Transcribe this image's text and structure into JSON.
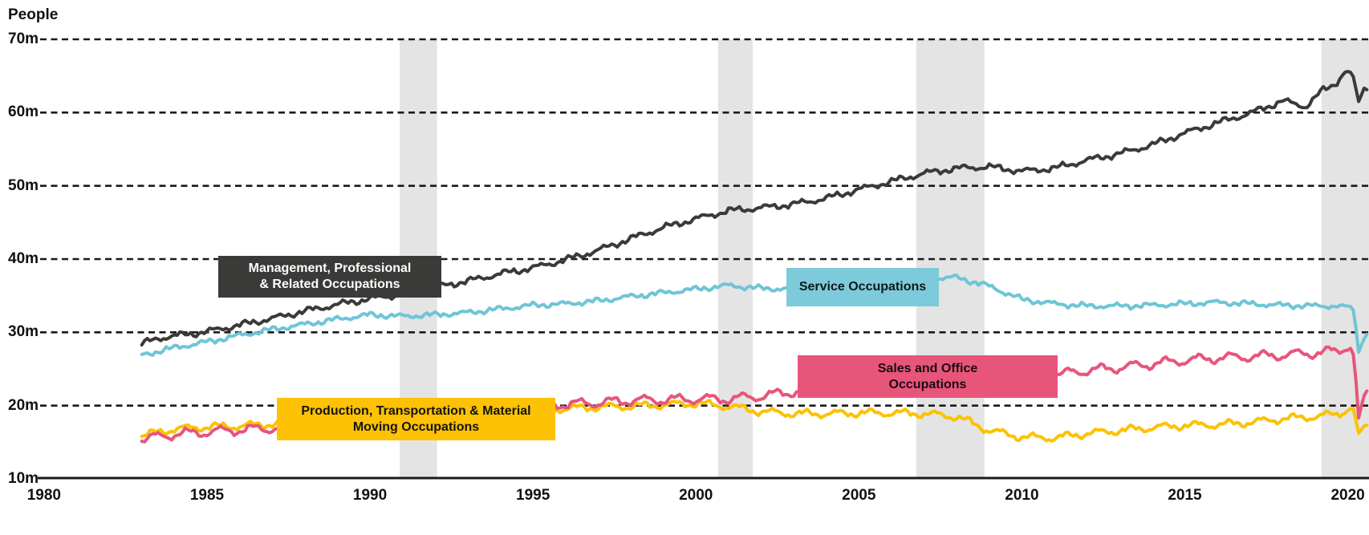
{
  "chart_data": {
    "type": "line",
    "title": "",
    "ylabel": "People",
    "xlabel": "",
    "ylim": [
      10,
      70
    ],
    "xlim": [
      1979.88,
      2020.65
    ],
    "grid": "horizontal-dashed",
    "background_color": "#ffffff",
    "gridline_color": "#1a1a1a",
    "recession_band_color": "#e4e4e4",
    "y_ticks": [
      {
        "value": 70,
        "label": "70m"
      },
      {
        "value": 60,
        "label": "60m"
      },
      {
        "value": 50,
        "label": "50m"
      },
      {
        "value": 40,
        "label": "40m"
      },
      {
        "value": 30,
        "label": "30m"
      },
      {
        "value": 20,
        "label": "20m"
      },
      {
        "value": 10,
        "label": "10m"
      }
    ],
    "x_ticks": [
      {
        "value": 1980,
        "label": "1980"
      },
      {
        "value": 1985,
        "label": "1985"
      },
      {
        "value": 1990,
        "label": "1990"
      },
      {
        "value": 1995,
        "label": "1995"
      },
      {
        "value": 2000,
        "label": "2000"
      },
      {
        "value": 2005,
        "label": "2005"
      },
      {
        "value": 2010,
        "label": "2010"
      },
      {
        "value": 2015,
        "label": "2015"
      },
      {
        "value": 2020,
        "label": "2020"
      }
    ],
    "recession_bands": [
      {
        "start": 1990.91,
        "end": 1992.06
      },
      {
        "start": 2000.68,
        "end": 2001.74
      },
      {
        "start": 2006.76,
        "end": 2008.85
      },
      {
        "start": 2019.19,
        "end": 2020.65
      }
    ],
    "units": "millions of people",
    "series": [
      {
        "slug": "production",
        "name": "Production, Transportation & Material Moving Occupations",
        "label_lines": [
          "Production, Transportation & Material",
          "Moving Occupations"
        ],
        "color": "#fcc203",
        "label_box_color": "#fcc203",
        "label_text_color": "#151310",
        "anchors": [
          [
            1983,
            15.9
          ],
          [
            1984,
            16.8
          ],
          [
            1985,
            17.1
          ],
          [
            1986,
            17.2
          ],
          [
            1987,
            17.5
          ],
          [
            1988,
            17.8
          ],
          [
            1989,
            18.2
          ],
          [
            1990,
            18.4
          ],
          [
            1991,
            17.9
          ],
          [
            1992,
            17.9
          ],
          [
            1993,
            18.3
          ],
          [
            1994,
            18.8
          ],
          [
            1995,
            19.3
          ],
          [
            1996,
            19.6
          ],
          [
            1997,
            19.8
          ],
          [
            1998,
            19.9
          ],
          [
            1999,
            20.1
          ],
          [
            2000,
            20.3
          ],
          [
            2001,
            19.9
          ],
          [
            2002,
            19.2
          ],
          [
            2003,
            18.9
          ],
          [
            2004,
            18.9
          ],
          [
            2005,
            19.0
          ],
          [
            2006,
            19.0
          ],
          [
            2007,
            18.9
          ],
          [
            2008,
            18.5
          ],
          [
            2009,
            16.6
          ],
          [
            2010,
            15.7
          ],
          [
            2011,
            15.6
          ],
          [
            2012,
            16.2
          ],
          [
            2013,
            16.6
          ],
          [
            2014,
            17.0
          ],
          [
            2015,
            17.3
          ],
          [
            2016,
            17.4
          ],
          [
            2017,
            17.7
          ],
          [
            2018,
            18.2
          ],
          [
            2019,
            18.5
          ],
          [
            2019.9,
            19.0
          ],
          [
            2020.15,
            19.9
          ],
          [
            2020.33,
            16.1
          ],
          [
            2020.5,
            17.1
          ],
          [
            2020.65,
            17.5
          ]
        ]
      },
      {
        "slug": "sales",
        "name": "Sales and Office Occupations",
        "label_lines": [
          "Sales and Office",
          "Occupations"
        ],
        "color": "#e8557b",
        "label_box_color": "#e8557b",
        "label_text_color": "#1a0d12",
        "anchors": [
          [
            1983,
            15.4
          ],
          [
            1984,
            16.1
          ],
          [
            1985,
            16.4
          ],
          [
            1986,
            16.7
          ],
          [
            1987,
            16.9
          ],
          [
            1988,
            17.3
          ],
          [
            1989,
            17.6
          ],
          [
            1990,
            17.9
          ],
          [
            1991,
            18.1
          ],
          [
            1992,
            18.5
          ],
          [
            1993,
            18.9
          ],
          [
            1994,
            19.4
          ],
          [
            1995,
            19.9
          ],
          [
            1996,
            20.2
          ],
          [
            1997,
            20.4
          ],
          [
            1998,
            20.7
          ],
          [
            1999,
            20.8
          ],
          [
            2000,
            20.9
          ],
          [
            2001,
            20.9
          ],
          [
            2002,
            21.3
          ],
          [
            2003,
            21.9
          ],
          [
            2004,
            22.4
          ],
          [
            2005,
            22.9
          ],
          [
            2006,
            23.5
          ],
          [
            2007,
            24.1
          ],
          [
            2008,
            24.4
          ],
          [
            2009,
            23.7
          ],
          [
            2010,
            23.8
          ],
          [
            2011,
            24.2
          ],
          [
            2012,
            24.8
          ],
          [
            2013,
            25.2
          ],
          [
            2014,
            25.7
          ],
          [
            2015,
            26.2
          ],
          [
            2016,
            26.5
          ],
          [
            2017,
            26.7
          ],
          [
            2018,
            26.9
          ],
          [
            2019,
            27.2
          ],
          [
            2019.8,
            27.5
          ],
          [
            2020.1,
            27.9
          ],
          [
            2020.2,
            26.5
          ],
          [
            2020.33,
            18.1
          ],
          [
            2020.5,
            21.2
          ],
          [
            2020.65,
            22.6
          ]
        ]
      },
      {
        "slug": "service",
        "name": "Service Occupations",
        "label_lines": [
          "Service Occupations"
        ],
        "color": "#6fc5d6",
        "label_box_color": "#7dcada",
        "label_text_color": "#10181a",
        "anchors": [
          [
            1983,
            26.9
          ],
          [
            1984,
            27.9
          ],
          [
            1985,
            28.7
          ],
          [
            1986,
            29.6
          ],
          [
            1987,
            30.4
          ],
          [
            1988,
            31.1
          ],
          [
            1989,
            31.8
          ],
          [
            1990,
            32.4
          ],
          [
            1991,
            32.2
          ],
          [
            1992,
            32.4
          ],
          [
            1993,
            32.7
          ],
          [
            1994,
            33.2
          ],
          [
            1995,
            33.7
          ],
          [
            1996,
            33.9
          ],
          [
            1997,
            34.3
          ],
          [
            1998,
            34.9
          ],
          [
            1999,
            35.4
          ],
          [
            2000,
            35.9
          ],
          [
            2001,
            36.4
          ],
          [
            2002,
            36.0
          ],
          [
            2003,
            35.9
          ],
          [
            2004,
            36.1
          ],
          [
            2005,
            36.4
          ],
          [
            2006,
            36.9
          ],
          [
            2007,
            37.3
          ],
          [
            2008,
            37.5
          ],
          [
            2009,
            36.3
          ],
          [
            2010,
            34.5
          ],
          [
            2011,
            33.9
          ],
          [
            2012,
            33.6
          ],
          [
            2013,
            33.6
          ],
          [
            2014,
            33.7
          ],
          [
            2015,
            33.9
          ],
          [
            2016,
            34.1
          ],
          [
            2017,
            33.9
          ],
          [
            2018,
            33.7
          ],
          [
            2019,
            33.6
          ],
          [
            2020.05,
            33.6
          ],
          [
            2020.2,
            32.8
          ],
          [
            2020.33,
            27.3
          ],
          [
            2020.5,
            29.2
          ],
          [
            2020.65,
            30.3
          ]
        ]
      },
      {
        "slug": "management",
        "name": "Management, Professional & Related Occupations",
        "label_lines": [
          "Management, Professional",
          "& Related Occupations"
        ],
        "color": "#3a3a38",
        "label_box_color": "#3a3a38",
        "label_text_color": "#ffffff",
        "anchors": [
          [
            1983,
            28.4
          ],
          [
            1983.5,
            29.2
          ],
          [
            1984,
            29.5
          ],
          [
            1985,
            30.1
          ],
          [
            1986,
            31.0
          ],
          [
            1987,
            31.9
          ],
          [
            1988,
            32.9
          ],
          [
            1989,
            33.8
          ],
          [
            1990,
            34.6
          ],
          [
            1991,
            35.2
          ],
          [
            1992,
            36.2
          ],
          [
            1993,
            37.0
          ],
          [
            1994,
            38.0
          ],
          [
            1995,
            38.8
          ],
          [
            1996,
            39.9
          ],
          [
            1997,
            41.2
          ],
          [
            1998,
            42.8
          ],
          [
            1999,
            44.3
          ],
          [
            2000,
            45.5
          ],
          [
            2001,
            46.6
          ],
          [
            2002,
            47.0
          ],
          [
            2003,
            47.5
          ],
          [
            2004,
            48.3
          ],
          [
            2005,
            49.5
          ],
          [
            2006,
            50.6
          ],
          [
            2007,
            51.7
          ],
          [
            2008,
            52.4
          ],
          [
            2009,
            52.6
          ],
          [
            2010,
            52.0
          ],
          [
            2011,
            52.4
          ],
          [
            2012,
            53.5
          ],
          [
            2013,
            54.4
          ],
          [
            2014,
            55.6
          ],
          [
            2015,
            57.2
          ],
          [
            2016,
            58.6
          ],
          [
            2017,
            59.9
          ],
          [
            2018,
            61.6
          ],
          [
            2018.7,
            60.8
          ],
          [
            2019.2,
            62.9
          ],
          [
            2019.6,
            63.9
          ],
          [
            2019.95,
            65.7
          ],
          [
            2020.15,
            65.2
          ],
          [
            2020.33,
            61.4
          ],
          [
            2020.5,
            63.4
          ],
          [
            2020.65,
            62.9
          ]
        ]
      }
    ]
  }
}
